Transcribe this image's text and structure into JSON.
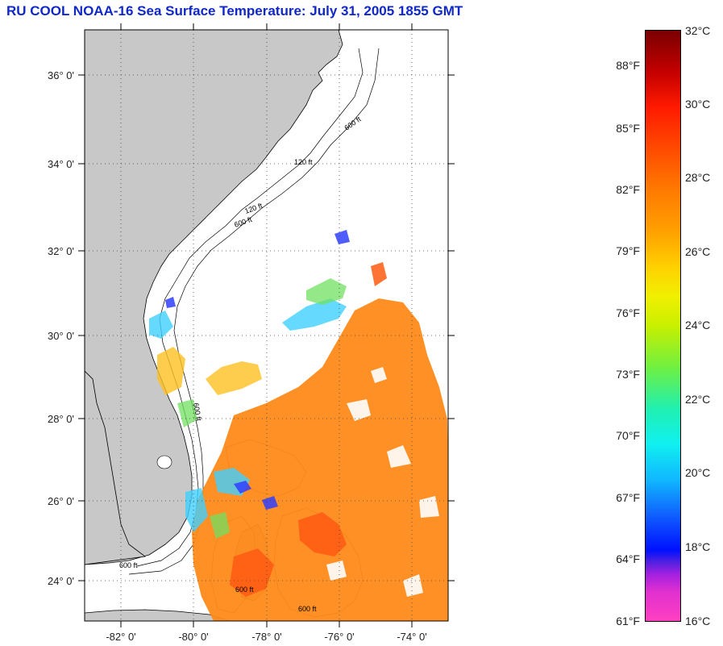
{
  "title": "RU COOL  NOAA-16  Sea Surface Temperature:  July 31, 2005 1855 GMT",
  "lat_labels": [
    "36° 0'",
    "34° 0'",
    "32° 0'",
    "30° 0'",
    "28° 0'",
    "26° 0'",
    "24° 0'"
  ],
  "lon_labels": [
    "-82° 0'",
    "-80° 0'",
    "-78° 0'",
    "-76° 0'",
    "-74° 0'"
  ],
  "contour_labels": [
    "120 ft",
    "600 ft",
    "120 ft",
    "600 ft",
    "600 ft",
    "600 ft",
    "600 ft",
    "600 ft"
  ],
  "colorbar": {
    "celsius": [
      "32°C",
      "30°C",
      "28°C",
      "26°C",
      "24°C",
      "22°C",
      "20°C",
      "18°C",
      "16°C"
    ],
    "fahrenheit": [
      "88°F",
      "85°F",
      "82°F",
      "79°F",
      "76°F",
      "73°F",
      "70°F",
      "67°F",
      "64°F",
      "61°F"
    ]
  },
  "colors": {
    "land": "#c8c8c8",
    "title": "#1028c8",
    "warm": "#ff8a1a",
    "hot": "#ff3a10",
    "cool": "#40d0ff",
    "cold": "#3040ff"
  }
}
